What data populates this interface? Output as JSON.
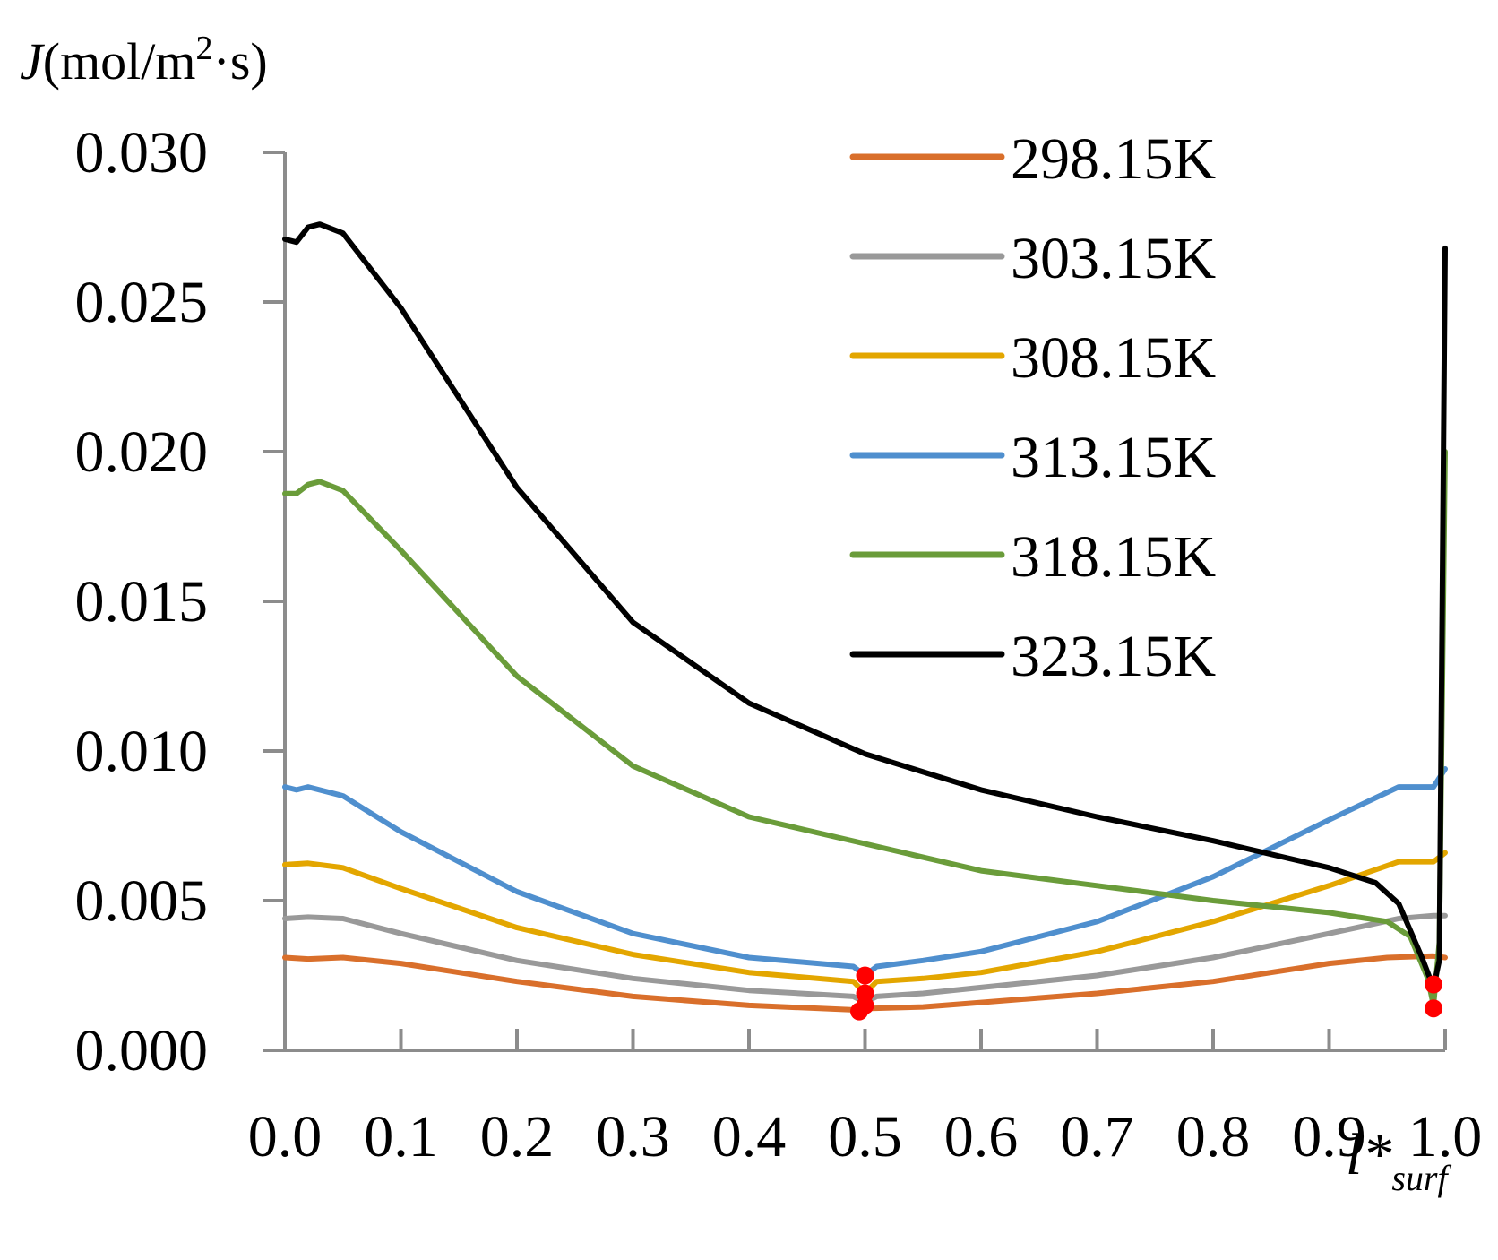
{
  "chart_data": {
    "type": "line",
    "ylabel": {
      "symbol": "J",
      "unit_open": "(mol/m",
      "unit_sup": "2",
      "unit_close": "·s)"
    },
    "xlabel": {
      "symbol": "l*",
      "subscript": "surf"
    },
    "xlim": [
      0.0,
      1.0
    ],
    "ylim": [
      0.0,
      0.03
    ],
    "xticks": [
      0.0,
      0.1,
      0.2,
      0.3,
      0.4,
      0.5,
      0.6,
      0.7,
      0.8,
      0.9,
      1.0
    ],
    "yticks": [
      0.0,
      0.005,
      0.01,
      0.015,
      0.02,
      0.025,
      0.03
    ],
    "xtick_labels": [
      "0.0",
      "0.1",
      "0.2",
      "0.3",
      "0.4",
      "0.5",
      "0.6",
      "0.7",
      "0.8",
      "0.9",
      "1.0"
    ],
    "ytick_labels": [
      "0.000",
      "0.005",
      "0.010",
      "0.015",
      "0.020",
      "0.025",
      "0.030"
    ],
    "legend_position": "top-right",
    "series": [
      {
        "name": "298.15K",
        "color": "#d96f2b",
        "x": [
          0.0,
          0.02,
          0.05,
          0.1,
          0.2,
          0.3,
          0.4,
          0.49,
          0.495,
          0.5,
          0.505,
          0.55,
          0.6,
          0.7,
          0.8,
          0.9,
          0.95,
          0.99,
          1.0
        ],
        "y": [
          0.0031,
          0.00305,
          0.0031,
          0.0029,
          0.0023,
          0.0018,
          0.0015,
          0.00135,
          0.0013,
          0.0014,
          0.0014,
          0.00145,
          0.0016,
          0.0019,
          0.0023,
          0.0029,
          0.0031,
          0.00315,
          0.0031
        ]
      },
      {
        "name": "303.15K",
        "color": "#999999",
        "x": [
          0.0,
          0.02,
          0.05,
          0.1,
          0.2,
          0.3,
          0.4,
          0.49,
          0.5,
          0.51,
          0.55,
          0.6,
          0.7,
          0.8,
          0.9,
          0.96,
          0.99,
          1.0
        ],
        "y": [
          0.0044,
          0.00445,
          0.0044,
          0.0039,
          0.003,
          0.0024,
          0.002,
          0.0018,
          0.0016,
          0.0018,
          0.0019,
          0.0021,
          0.0025,
          0.0031,
          0.0039,
          0.0044,
          0.0045,
          0.0045
        ]
      },
      {
        "name": "308.15K",
        "color": "#e3a600",
        "x": [
          0.0,
          0.02,
          0.05,
          0.1,
          0.2,
          0.3,
          0.4,
          0.49,
          0.5,
          0.51,
          0.55,
          0.6,
          0.7,
          0.8,
          0.9,
          0.96,
          0.99,
          1.0
        ],
        "y": [
          0.0062,
          0.00625,
          0.0061,
          0.0054,
          0.0041,
          0.0032,
          0.0026,
          0.0023,
          0.0019,
          0.0023,
          0.0024,
          0.0026,
          0.0033,
          0.0043,
          0.0055,
          0.0063,
          0.0063,
          0.0066
        ]
      },
      {
        "name": "313.15K",
        "color": "#4f8fce",
        "x": [
          0.0,
          0.01,
          0.02,
          0.05,
          0.1,
          0.2,
          0.3,
          0.4,
          0.49,
          0.5,
          0.51,
          0.55,
          0.6,
          0.7,
          0.8,
          0.9,
          0.96,
          0.99,
          1.0
        ],
        "y": [
          0.0088,
          0.0087,
          0.0088,
          0.0085,
          0.0073,
          0.0053,
          0.0039,
          0.0031,
          0.0028,
          0.0025,
          0.0028,
          0.003,
          0.0033,
          0.0043,
          0.0058,
          0.0077,
          0.0088,
          0.0088,
          0.0094
        ]
      },
      {
        "name": "318.15K",
        "color": "#6a9c3a",
        "x": [
          0.0,
          0.01,
          0.02,
          0.03,
          0.05,
          0.1,
          0.2,
          0.3,
          0.4,
          0.5,
          0.6,
          0.7,
          0.8,
          0.9,
          0.95,
          0.97,
          0.985,
          0.99,
          0.995,
          1.0
        ],
        "y": [
          0.0186,
          0.0186,
          0.0189,
          0.019,
          0.0187,
          0.0167,
          0.0125,
          0.0095,
          0.0078,
          0.0069,
          0.006,
          0.0055,
          0.005,
          0.0046,
          0.0043,
          0.0038,
          0.0024,
          0.0015,
          0.0036,
          0.02
        ]
      },
      {
        "name": "323.15K",
        "color": "#000000",
        "x": [
          0.0,
          0.01,
          0.02,
          0.03,
          0.05,
          0.1,
          0.2,
          0.3,
          0.4,
          0.5,
          0.6,
          0.7,
          0.8,
          0.9,
          0.94,
          0.96,
          0.98,
          0.99,
          0.995,
          1.0
        ],
        "y": [
          0.0271,
          0.027,
          0.0275,
          0.0276,
          0.0273,
          0.0248,
          0.0188,
          0.0143,
          0.0116,
          0.0099,
          0.0087,
          0.0078,
          0.007,
          0.0061,
          0.0056,
          0.0049,
          0.0031,
          0.0021,
          0.003,
          0.0268
        ]
      }
    ],
    "markers": {
      "color": "#ff0000",
      "points": [
        {
          "x": 0.495,
          "y": 0.0013
        },
        {
          "x": 0.5,
          "y": 0.0015
        },
        {
          "x": 0.5,
          "y": 0.0019
        },
        {
          "x": 0.5,
          "y": 0.0025
        },
        {
          "x": 0.99,
          "y": 0.0022
        },
        {
          "x": 0.99,
          "y": 0.0014
        }
      ]
    }
  }
}
